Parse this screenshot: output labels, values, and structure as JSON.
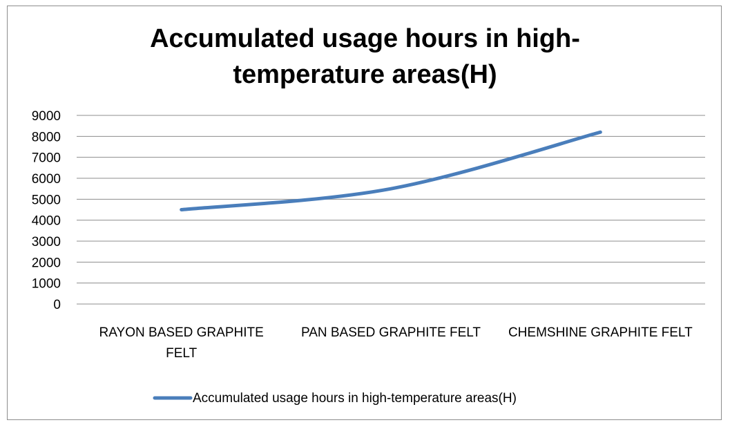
{
  "chart_data": {
    "type": "line",
    "title_lines": [
      "Accumulated usage hours in high-",
      "temperature areas(H)"
    ],
    "categories": [
      [
        "RAYON BASED GRAPHITE",
        "FELT"
      ],
      [
        "PAN BASED GRAPHITE FELT"
      ],
      [
        "CHEMSHINE GRAPHITE FELT"
      ]
    ],
    "series": [
      {
        "name": "Accumulated usage hours in high-temperature areas(H)",
        "values": [
          4500,
          5500,
          8200
        ],
        "color": "#4a7ebb"
      }
    ],
    "yticks": [
      "0",
      "1000",
      "2000",
      "3000",
      "4000",
      "5000",
      "6000",
      "7000",
      "8000",
      "9000"
    ],
    "ylim": [
      0,
      9000
    ],
    "grid": true,
    "legend_position": "bottom"
  }
}
